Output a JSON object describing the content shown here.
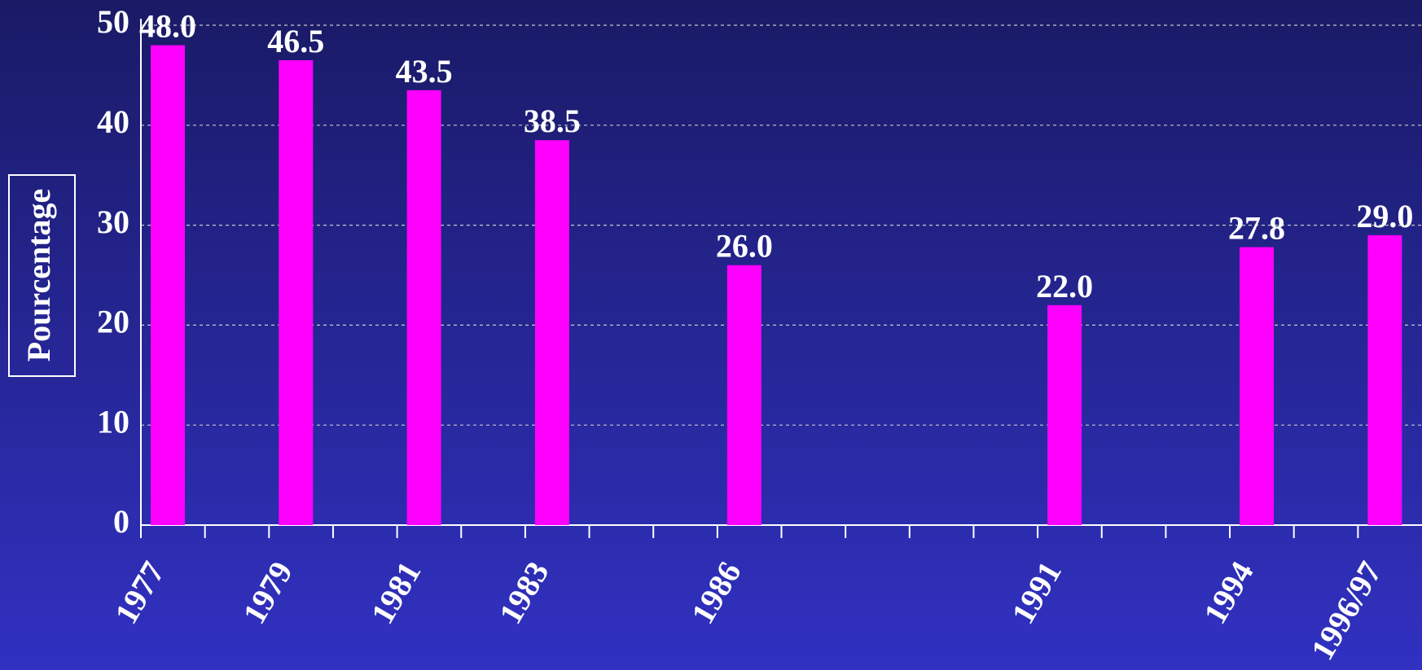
{
  "chart_data": {
    "type": "bar",
    "y_label": "Pourcentage",
    "categories": [
      "1977",
      null,
      "1979",
      null,
      "1981",
      null,
      "1983",
      null,
      null,
      "1986",
      null,
      null,
      null,
      null,
      "1991",
      null,
      null,
      "1994",
      null,
      "1996/97"
    ],
    "values": [
      48.0,
      null,
      46.5,
      null,
      43.5,
      null,
      38.5,
      null,
      null,
      26.0,
      null,
      null,
      null,
      null,
      22.0,
      null,
      null,
      27.8,
      null,
      29.0
    ],
    "value_labels": [
      "48.0",
      null,
      "46.5",
      null,
      "43.5",
      null,
      "38.5",
      null,
      null,
      "26.0",
      null,
      null,
      null,
      null,
      "22.0",
      null,
      null,
      "27.8",
      null,
      "29.0"
    ],
    "color": "#ff00ff",
    "ylim": [
      0,
      50
    ],
    "yticks": [
      0,
      10,
      20,
      30,
      40,
      50
    ],
    "grid": true
  }
}
